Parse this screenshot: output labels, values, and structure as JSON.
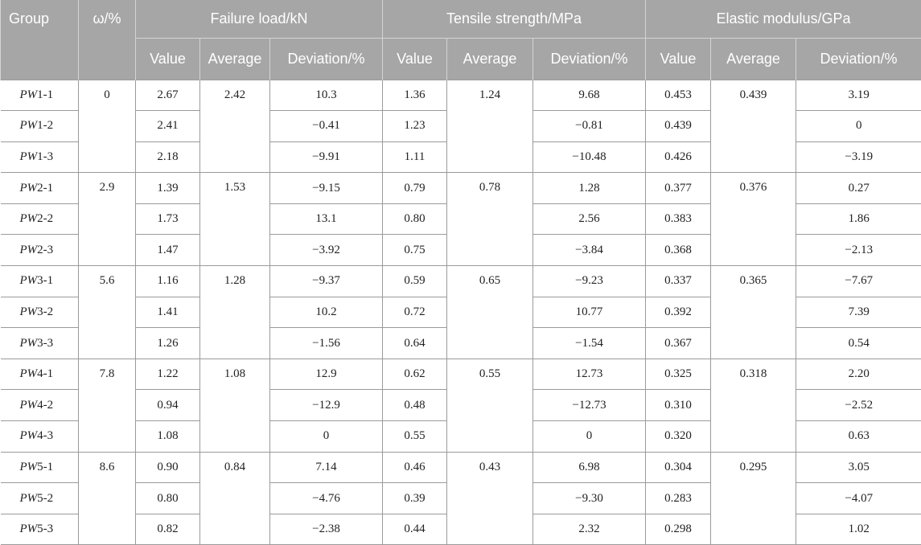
{
  "header": {
    "group": "Group",
    "omega": "ω/%",
    "failure_load": "Failure load/kN",
    "tensile_strength": "Tensile strength/MPa",
    "elastic_modulus": "Elastic modulus/GPa",
    "value": "Value",
    "average": "Average",
    "deviation": "Deviation/%"
  },
  "groups": [
    {
      "omega": "0",
      "f_avg": "2.42",
      "t_avg": "1.24",
      "e_avg": "0.439",
      "rows": [
        {
          "prefix": "PW",
          "suffix": "1-1",
          "fv": "2.67",
          "fd": "10.3",
          "tv": "1.36",
          "td": "9.68",
          "ev": "0.453",
          "ed": "3.19"
        },
        {
          "prefix": "PW",
          "suffix": "1-2",
          "fv": "2.41",
          "fd": "−0.41",
          "tv": "1.23",
          "td": "−0.81",
          "ev": "0.439",
          "ed": "0"
        },
        {
          "prefix": "PW",
          "suffix": "1-3",
          "fv": "2.18",
          "fd": "−9.91",
          "tv": "1.11",
          "td": "−10.48",
          "ev": "0.426",
          "ed": "−3.19"
        }
      ]
    },
    {
      "omega": "2.9",
      "f_avg": "1.53",
      "t_avg": "0.78",
      "e_avg": "0.376",
      "rows": [
        {
          "prefix": "PW",
          "suffix": "2-1",
          "fv": "1.39",
          "fd": "−9.15",
          "tv": "0.79",
          "td": "1.28",
          "ev": "0.377",
          "ed": "0.27"
        },
        {
          "prefix": "PW",
          "suffix": "2-2",
          "fv": "1.73",
          "fd": "13.1",
          "tv": "0.80",
          "td": "2.56",
          "ev": "0.383",
          "ed": "1.86"
        },
        {
          "prefix": "PW",
          "suffix": "2-3",
          "fv": "1.47",
          "fd": "−3.92",
          "tv": "0.75",
          "td": "−3.84",
          "ev": "0.368",
          "ed": "−2.13"
        }
      ]
    },
    {
      "omega": "5.6",
      "f_avg": "1.28",
      "t_avg": "0.65",
      "e_avg": "0.365",
      "rows": [
        {
          "prefix": "PW",
          "suffix": "3-1",
          "fv": "1.16",
          "fd": "−9.37",
          "tv": "0.59",
          "td": "−9.23",
          "ev": "0.337",
          "ed": "−7.67"
        },
        {
          "prefix": "PW",
          "suffix": "3-2",
          "fv": "1.41",
          "fd": "10.2",
          "tv": "0.72",
          "td": "10.77",
          "ev": "0.392",
          "ed": "7.39"
        },
        {
          "prefix": "PW",
          "suffix": "3-3",
          "fv": "1.26",
          "fd": "−1.56",
          "tv": "0.64",
          "td": "−1.54",
          "ev": "0.367",
          "ed": "0.54"
        }
      ]
    },
    {
      "omega": "7.8",
      "f_avg": "1.08",
      "t_avg": "0.55",
      "e_avg": "0.318",
      "rows": [
        {
          "prefix": "PW",
          "suffix": "4-1",
          "fv": "1.22",
          "fd": "12.9",
          "tv": "0.62",
          "td": "12.73",
          "ev": "0.325",
          "ed": "2.20"
        },
        {
          "prefix": "PW",
          "suffix": "4-2",
          "fv": "0.94",
          "fd": "−12.9",
          "tv": "0.48",
          "td": "−12.73",
          "ev": "0.310",
          "ed": "−2.52"
        },
        {
          "prefix": "PW",
          "suffix": "4-3",
          "fv": "1.08",
          "fd": "0",
          "tv": "0.55",
          "td": "0",
          "ev": "0.320",
          "ed": "0.63"
        }
      ]
    },
    {
      "omega": "8.6",
      "f_avg": "0.84",
      "t_avg": "0.43",
      "e_avg": "0.295",
      "rows": [
        {
          "prefix": "PW",
          "suffix": "5-1",
          "fv": "0.90",
          "fd": "7.14",
          "tv": "0.46",
          "td": "6.98",
          "ev": "0.304",
          "ed": "3.05"
        },
        {
          "prefix": "PW",
          "suffix": "5-2",
          "fv": "0.80",
          "fd": "−4.76",
          "tv": "0.39",
          "td": "−9.30",
          "ev": "0.283",
          "ed": "−4.07"
        },
        {
          "prefix": "PW",
          "suffix": "5-3",
          "fv": "0.82",
          "fd": "−2.38",
          "tv": "0.44",
          "td": "2.32",
          "ev": "0.298",
          "ed": "1.02"
        }
      ]
    }
  ]
}
